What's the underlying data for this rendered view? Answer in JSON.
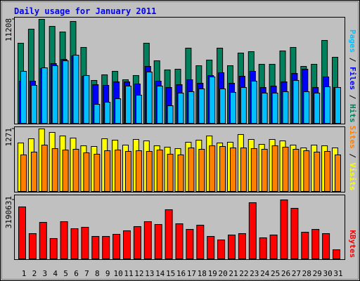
{
  "chart_data": {
    "type": "bar",
    "title": "Daily usage for January 2011",
    "categories": [
      "1",
      "2",
      "3",
      "4",
      "5",
      "6",
      "7",
      "8",
      "9",
      "10",
      "11",
      "12",
      "13",
      "14",
      "15",
      "16",
      "17",
      "18",
      "19",
      "20",
      "21",
      "22",
      "23",
      "24",
      "25",
      "26",
      "27",
      "28",
      "29",
      "30",
      "31"
    ],
    "category_colors": [
      "#008040",
      "#008040",
      "#000080",
      "#000080",
      "#000080",
      "#000080",
      "#000080",
      "#008040",
      "#008040",
      "#000080",
      "#000080",
      "#000080",
      "#000080",
      "#000080",
      "#008040",
      "#008040",
      "#000080",
      "#000080",
      "#000080",
      "#000080",
      "#000080",
      "#008040",
      "#008040",
      "#000080",
      "#000080",
      "#000080",
      "#000080",
      "#000080",
      "#008040",
      "#008040",
      "#000080"
    ],
    "legend_separator": " / ",
    "panels": [
      {
        "ylim": [
          0,
          11208
        ],
        "yticks": [
          11208
        ],
        "legend_order": [
          2,
          1,
          0
        ],
        "series": [
          {
            "name": "Hits",
            "color": "#00805c",
            "values": [
              8633,
              10148,
              11208,
              10451,
              9845,
              10981,
              8179,
              4620,
              5225,
              5604,
              4695,
              5150,
              8633,
              6740,
              5755,
              5831,
              8103,
              6210,
              6816,
              8103,
              6210,
              7573,
              7724,
              6361,
              6361,
              7800,
              8179,
              6134,
              6361,
              8936,
              7119
            ]
          },
          {
            "name": "Files",
            "color": "#0000ff",
            "values": [
              4544,
              4544,
              5907,
              6437,
              6891,
              7270,
              5074,
              4165,
              4089,
              4468,
              4468,
              4241,
              6134,
              4544,
              3862,
              4165,
              4695,
              4317,
              5150,
              5453,
              4317,
              5074,
              5604,
              3862,
              4014,
              4468,
              5377,
              5831,
              3862,
              4998,
              3862
            ]
          },
          {
            "name": "Pages",
            "color": "#00c0ff",
            "values": [
              5604,
              4089,
              5983,
              6210,
              6740,
              7346,
              5150,
              2045,
              2272,
              2651,
              4014,
              3029,
              5528,
              4014,
              1893,
              3256,
              3408,
              3711,
              4998,
              3711,
              3332,
              3862,
              4544,
              3256,
              3256,
              3408,
              4620,
              3408,
              3256,
              3938,
              3862
            ]
          }
        ]
      },
      {
        "ylim": [
          0,
          1271
        ],
        "yticks": [
          1271
        ],
        "legend_order": [
          1,
          0
        ],
        "series": [
          {
            "name": "Visits",
            "color": "#ffff00",
            "values": [
              985,
              1071,
              1271,
              1200,
              1128,
              1085,
              928,
              914,
              1071,
              1042,
              942,
              1057,
              1028,
              928,
              900,
              871,
              1000,
              1042,
              1128,
              985,
              1000,
              1157,
              1057,
              957,
              1057,
              1028,
              942,
              885,
              942,
              928,
              885
            ]
          },
          {
            "name": "Sites",
            "color": "#ff8000",
            "values": [
              743,
              800,
              942,
              871,
              842,
              857,
              785,
              757,
              828,
              842,
              814,
              828,
              814,
              842,
              757,
              743,
              885,
              857,
              928,
              914,
              885,
              885,
              871,
              857,
              928,
              900,
              857,
              828,
              800,
              814,
              743
            ]
          }
        ]
      },
      {
        "ylim": [
          0,
          3190631
        ],
        "yticks": [
          3190631
        ],
        "legend_order": [
          0
        ],
        "series": [
          {
            "name": "KBytes",
            "color": "#ff0000",
            "values": [
              2810800,
              1367400,
              1975200,
              1101500,
              2013200,
              1633300,
              1709300,
              1215500,
              1215500,
              1329400,
              1519400,
              1747300,
              2013200,
              1861200,
              2658900,
              1899200,
              1595300,
              1823200,
              1215500,
              1025600,
              1291500,
              1367400,
              3038700,
              1139500,
              1291500,
              3190631,
              2734800,
              1443400,
              1595300,
              1367400,
              493800
            ]
          }
        ]
      }
    ]
  }
}
